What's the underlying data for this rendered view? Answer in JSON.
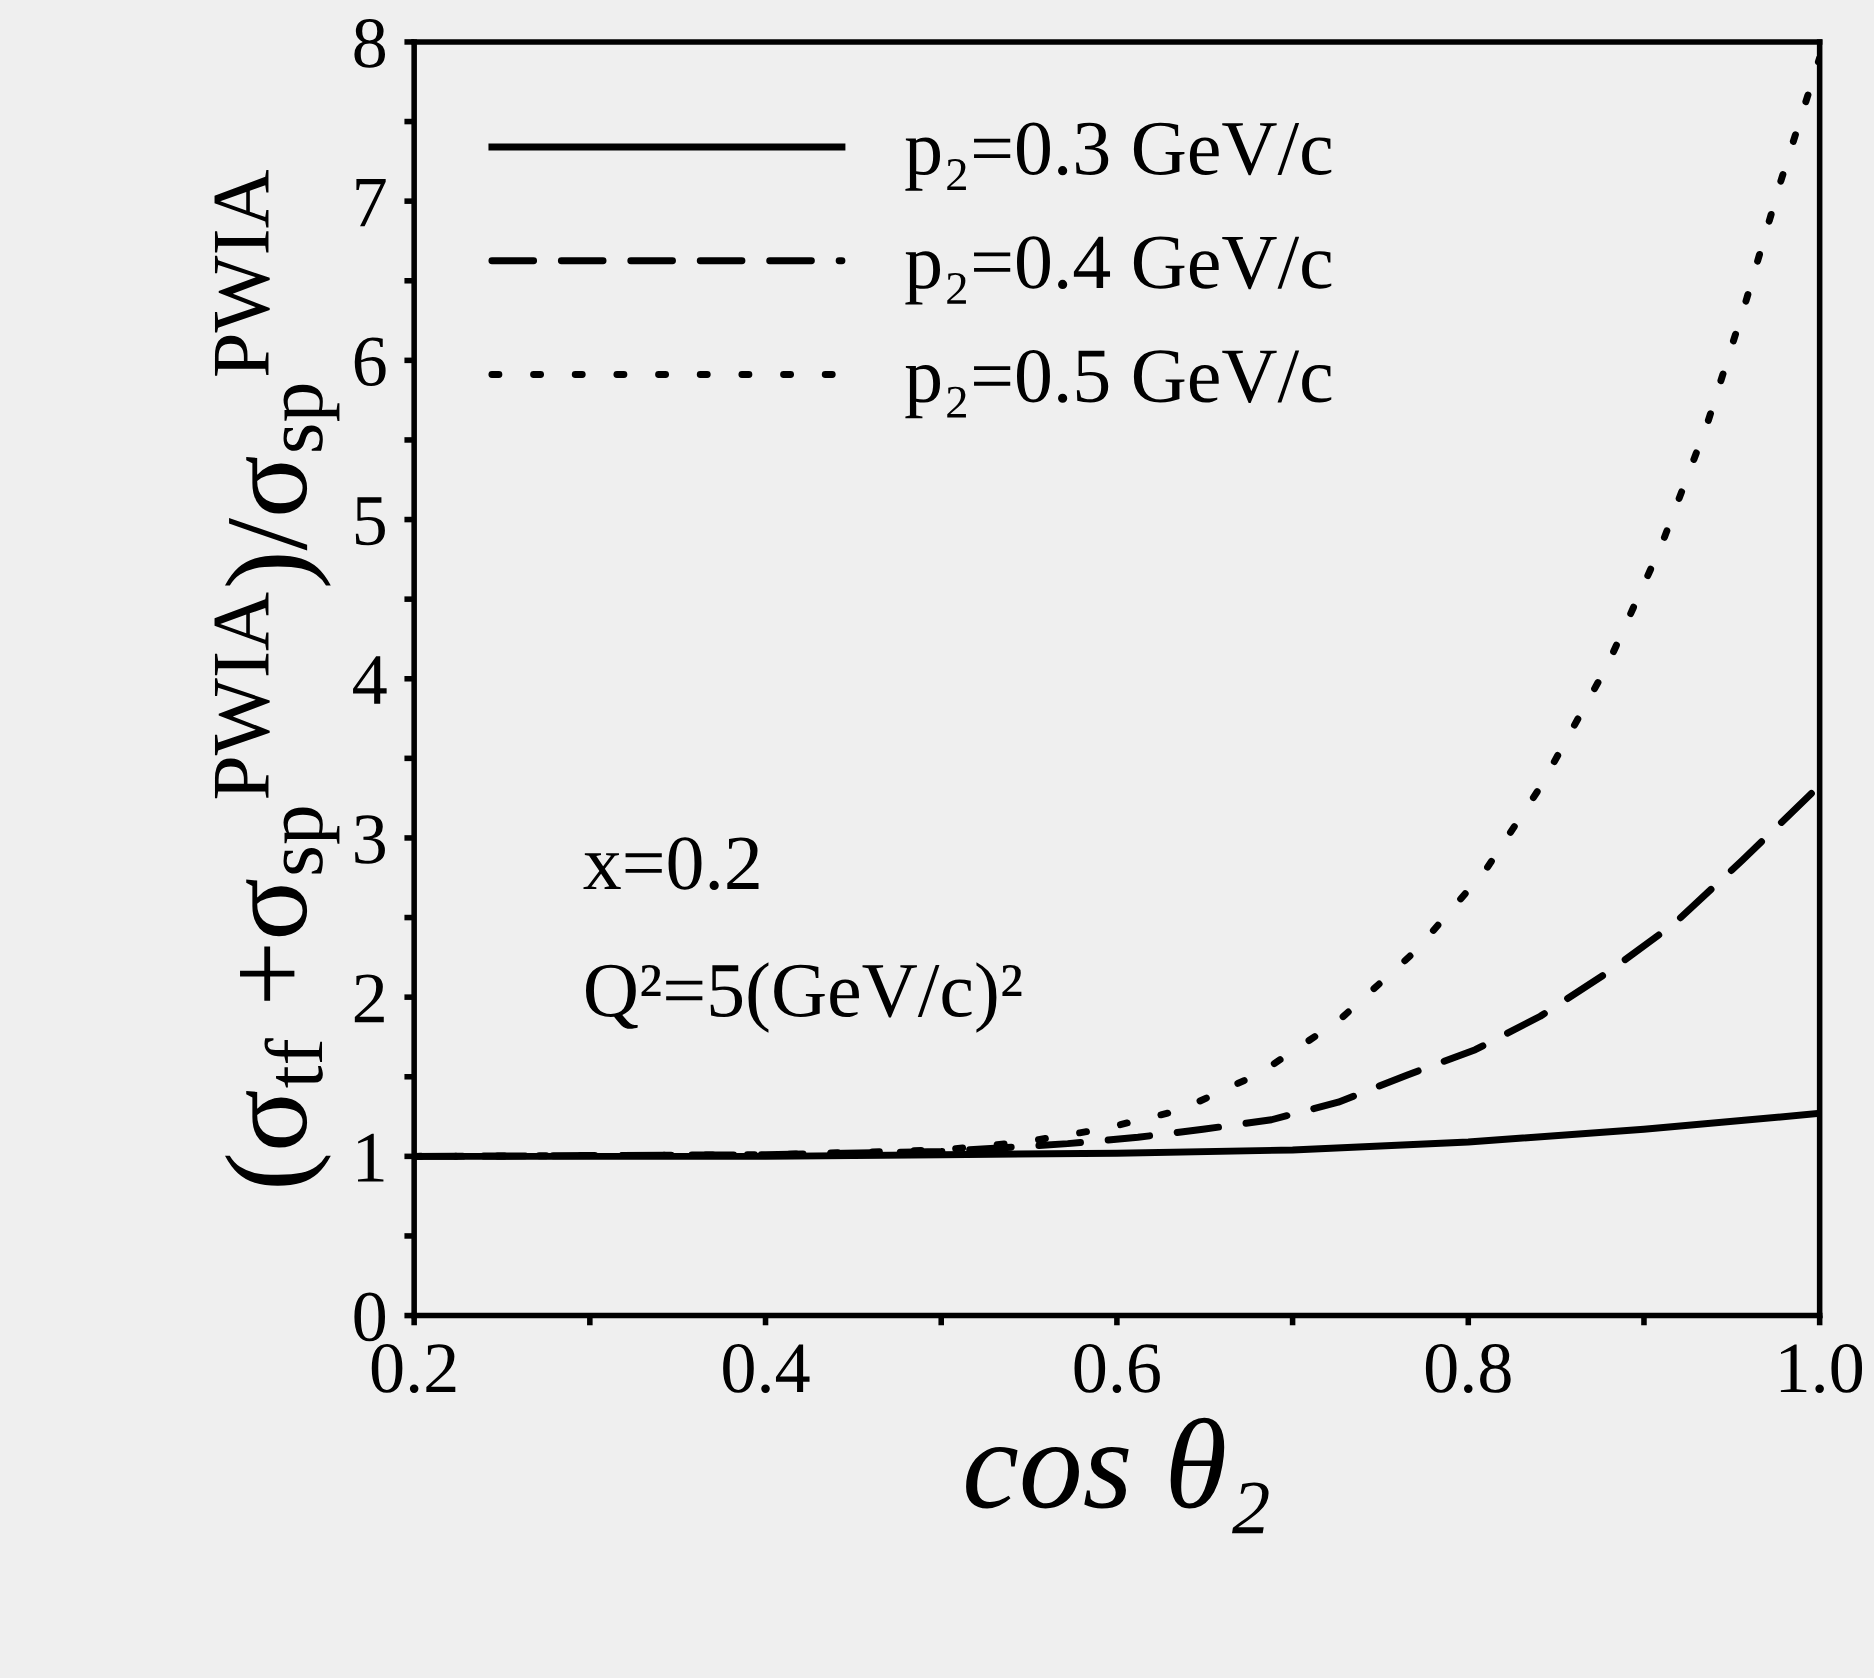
{
  "chart_data": {
    "type": "line",
    "xlabel": "cos θ₂",
    "ylabel": "(σ$_{tf}$ +σ$_{sp}$$^{PWIA}$)/σ$_{sp}$$^{PWIA}$",
    "annotations": [
      "x=0.2",
      "Q²=5(GeV/c)²"
    ],
    "xlim": [
      0.2,
      1.0
    ],
    "xticks": [
      0.2,
      {
        "value": 0.3,
        "label": null
      },
      0.4,
      {
        "value": 0.5,
        "label": null
      },
      0.6,
      {
        "value": 0.7,
        "label": null
      },
      0.8,
      {
        "value": 0.9,
        "label": null
      },
      {
        "value": 1.0,
        "label": "1.0"
      }
    ],
    "ylim": [
      0,
      8
    ],
    "yticks": [
      0,
      {
        "value": 0.5,
        "label": null
      },
      1,
      {
        "value": 1.5,
        "label": null
      },
      2,
      {
        "value": 2.5,
        "label": null
      },
      3,
      {
        "value": 3.5,
        "label": null
      },
      4,
      {
        "value": 4.5,
        "label": null
      },
      5,
      {
        "value": 5.5,
        "label": null
      },
      6,
      {
        "value": 6.5,
        "label": null
      },
      7,
      {
        "value": 7.5,
        "label": null
      },
      8
    ],
    "grid": false,
    "legend": "top left",
    "series": [
      {
        "name": "p₂=0.3 GeV/c",
        "color": "#000000",
        "line_style": "solid",
        "x": [
          0.2,
          0.4,
          0.5,
          0.6,
          0.7,
          0.8,
          0.9,
          1.0
        ],
        "values": [
          1.0,
          1.0,
          1.01,
          1.02,
          1.04,
          1.09,
          1.17,
          1.27
        ]
      },
      {
        "name": "p₂=0.4 GeV/c",
        "color": "#000000",
        "line_style": "dashed",
        "x": [
          0.2,
          0.4,
          0.5,
          0.572,
          0.612,
          0.649,
          0.688,
          0.726,
          0.765,
          0.804,
          0.841,
          0.88,
          0.917,
          0.956,
          1.0
        ],
        "values": [
          1.0,
          1.01,
          1.03,
          1.08,
          1.12,
          1.17,
          1.23,
          1.34,
          1.51,
          1.67,
          1.88,
          2.16,
          2.46,
          2.86,
          3.33
        ]
      },
      {
        "name": "p₂=0.5 GeV/c",
        "color": "#000000",
        "line_style": "dotted",
        "x": [
          0.2,
          0.4,
          0.5,
          0.547,
          0.591,
          0.636,
          0.681,
          0.726,
          0.77,
          0.81,
          0.841,
          0.879,
          0.91,
          0.936,
          0.958,
          0.978,
          1.0
        ],
        "values": [
          1.0,
          1.01,
          1.04,
          1.09,
          1.17,
          1.29,
          1.52,
          1.85,
          2.29,
          2.8,
          3.32,
          4.08,
          4.84,
          5.6,
          6.37,
          7.13,
          7.9
        ]
      }
    ]
  }
}
